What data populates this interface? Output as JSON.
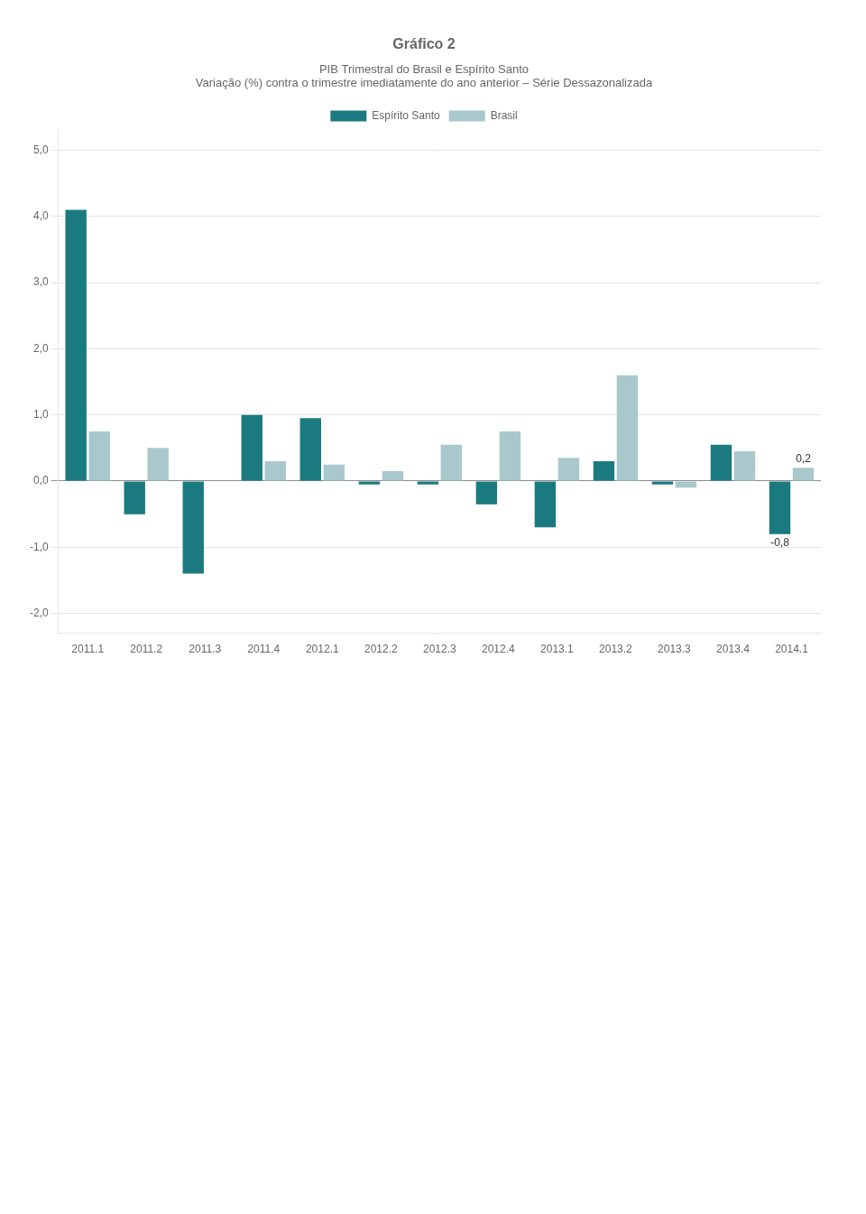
{
  "chart_data": {
    "type": "bar",
    "title": "Gráfico 2",
    "subtitle": [
      "PIB Trimestral do Brasil e Espírito Santo",
      "Variação (%) contra o trimestre imediatamente do ano anterior – Série Dessazonalizada"
    ],
    "categories": [
      "2011.1",
      "2011.2",
      "2011.3",
      "2011.4",
      "2012.1",
      "2012.2",
      "2012.3",
      "2012.4",
      "2013.1",
      "2013.2",
      "2013.3",
      "2013.4",
      "2014.1"
    ],
    "series": [
      {
        "name": "Espírito Santo",
        "color": "#1a7a80",
        "values": [
          4.1,
          -0.5,
          -1.4,
          1.0,
          0.95,
          -0.05,
          -0.05,
          -0.35,
          -0.7,
          0.3,
          -0.05,
          0.55,
          -0.8
        ]
      },
      {
        "name": "Brasil",
        "color": "#a8c8cc",
        "values": [
          0.75,
          0.5,
          0.0,
          0.3,
          0.25,
          0.15,
          0.55,
          0.75,
          0.35,
          1.6,
          -0.1,
          0.45,
          0.2
        ]
      }
    ],
    "ylim": [
      -2.3,
      5.3
    ],
    "yticks": [
      {
        "value": -2.0,
        "label": "-2,0"
      },
      {
        "value": -1.0,
        "label": "-1,0"
      },
      {
        "value": 0.0,
        "label": "0,0"
      },
      {
        "value": 1.0,
        "label": "1,0"
      },
      {
        "value": 2.0,
        "label": "2,0"
      },
      {
        "value": 3.0,
        "label": "3,0"
      },
      {
        "value": 4.0,
        "label": "4,0"
      },
      {
        "value": 5.0,
        "label": "5,0"
      }
    ],
    "grid": true,
    "legend": "top",
    "annotations": [
      {
        "text": "0,2",
        "x": "2014.1",
        "y": 0.2,
        "series": "Brasil"
      },
      {
        "text": "-0,8",
        "x": "2014.1",
        "y": -0.8,
        "series": "Espírito Santo"
      }
    ]
  }
}
